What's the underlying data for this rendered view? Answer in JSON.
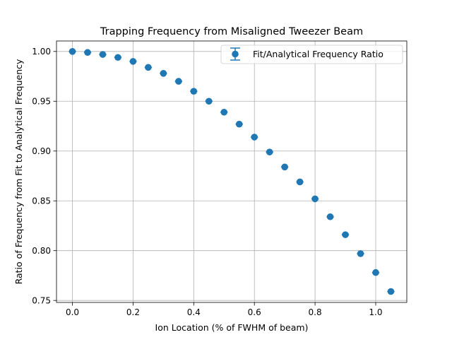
{
  "chart_data": {
    "type": "scatter",
    "title": "Trapping Frequency from Misaligned Tweezer Beam",
    "xlabel": "Ion Location (% of FWHM of beam)",
    "ylabel": "Ratio of Frequency from Fit to Analytical Frequency",
    "xlim": [
      -0.0525,
      1.1025
    ],
    "ylim": [
      0.748,
      1.0105
    ],
    "xticks": [
      0.0,
      0.2,
      0.4,
      0.6,
      0.8,
      1.0
    ],
    "xtick_labels": [
      "0.0",
      "0.2",
      "0.4",
      "0.6",
      "0.8",
      "1.0"
    ],
    "yticks": [
      0.75,
      0.8,
      0.85,
      0.9,
      0.95,
      1.0
    ],
    "ytick_labels": [
      "0.75",
      "0.80",
      "0.85",
      "0.90",
      "0.95",
      "1.00"
    ],
    "grid": true,
    "legend_position": "top-right",
    "color": "#1f77b4",
    "series": [
      {
        "name": "Fit/Analytical Frequency Ratio",
        "marker": "circle",
        "errorbars": "horizontal",
        "x_error": 0.012,
        "x": [
          0.0,
          0.05,
          0.1,
          0.15,
          0.2,
          0.25,
          0.3,
          0.35,
          0.4,
          0.45,
          0.5,
          0.55,
          0.6,
          0.65,
          0.7,
          0.75,
          0.8,
          0.85,
          0.9,
          0.95,
          1.0,
          1.05
        ],
        "y": [
          1.0,
          0.999,
          0.997,
          0.994,
          0.99,
          0.984,
          0.978,
          0.97,
          0.96,
          0.95,
          0.939,
          0.927,
          0.914,
          0.899,
          0.884,
          0.869,
          0.852,
          0.834,
          0.816,
          0.797,
          0.778,
          0.759
        ]
      }
    ]
  }
}
